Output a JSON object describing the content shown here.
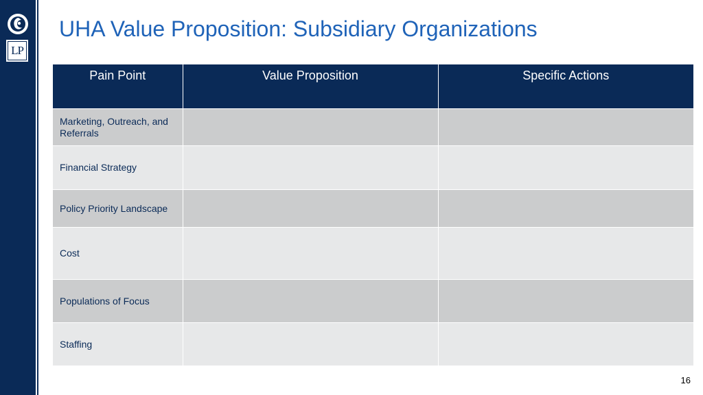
{
  "slide": {
    "title": "UHA Value Proposition: Subsidiary Organizations",
    "page_number": "16",
    "logo_text": "LP",
    "colors": {
      "navy": "#0a2a57",
      "title_blue": "#1f63b8",
      "row_dark": "#cbcccd",
      "row_light": "#e7e8e9"
    }
  },
  "table": {
    "headers": [
      "Pain Point",
      "Value Proposition",
      "Specific Actions"
    ],
    "rows": [
      {
        "pain_point": "Marketing, Outreach, and Referrals",
        "value_proposition": "",
        "specific_actions": ""
      },
      {
        "pain_point": "Financial Strategy",
        "value_proposition": "",
        "specific_actions": ""
      },
      {
        "pain_point": "Policy Priority Landscape",
        "value_proposition": "",
        "specific_actions": ""
      },
      {
        "pain_point": "Cost",
        "value_proposition": "",
        "specific_actions": ""
      },
      {
        "pain_point": "Populations of Focus",
        "value_proposition": "",
        "specific_actions": ""
      },
      {
        "pain_point": "Staffing",
        "value_proposition": "",
        "specific_actions": ""
      }
    ]
  }
}
